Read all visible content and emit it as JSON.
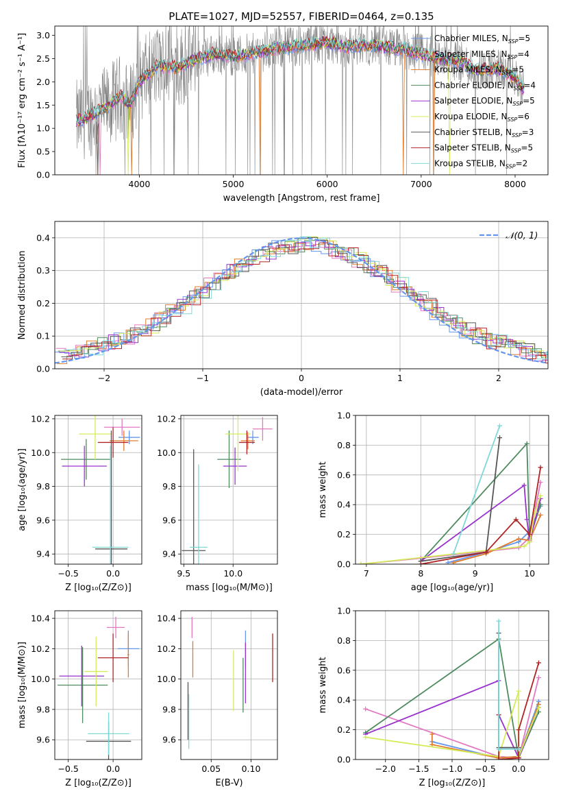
{
  "figure_title": "PLATE=1027, MJD=52557, FIBERID=0464, z=0.135",
  "colors": {
    "chabrier_miles": "#6495ed",
    "salpeter_miles": "#e377c2",
    "kroupa_miles": "#e07b2a",
    "chabrier_elodie": "#4e8a5e",
    "salpeter_elodie": "#9932cc",
    "kroupa_elodie": "#d4ec5a",
    "chabrier_stelib": "#555555",
    "salpeter_stelib": "#b22222",
    "kroupa_stelib": "#7fd8d8",
    "data_spectrum": "#808080",
    "normal_curve": "#6495ed",
    "grid": "#b0b0b0"
  },
  "chart_data": [
    {
      "id": "spectrum",
      "type": "line",
      "xlabel": "wavelength [Angstrom, rest frame]",
      "ylabel": "Flux [fλ10⁻¹⁷ erg cm⁻² s⁻¹ A⁻¹]",
      "xlim": [
        3100,
        8350
      ],
      "ylim": [
        0,
        3.2
      ],
      "xticks": [
        4000,
        5000,
        6000,
        7000,
        8000
      ],
      "yticks": [
        0.0,
        0.5,
        1.0,
        1.5,
        2.0,
        2.5,
        3.0
      ],
      "grid": false,
      "legend_position": "top-right",
      "continuum": [
        [
          3330,
          1.15
        ],
        [
          3500,
          1.3
        ],
        [
          3650,
          1.45
        ],
        [
          3800,
          1.7
        ],
        [
          3900,
          1.5
        ],
        [
          4000,
          2.0
        ],
        [
          4200,
          2.35
        ],
        [
          4400,
          2.3
        ],
        [
          4600,
          2.5
        ],
        [
          4800,
          2.6
        ],
        [
          5000,
          2.55
        ],
        [
          5200,
          2.6
        ],
        [
          5400,
          2.7
        ],
        [
          5600,
          2.75
        ],
        [
          5800,
          2.8
        ],
        [
          6000,
          2.85
        ],
        [
          6200,
          2.75
        ],
        [
          6400,
          2.8
        ],
        [
          6600,
          2.75
        ],
        [
          6800,
          2.7
        ],
        [
          7000,
          2.6
        ],
        [
          7200,
          2.5
        ],
        [
          7400,
          2.45
        ],
        [
          7600,
          2.25
        ],
        [
          7800,
          2.3
        ],
        [
          8000,
          2.1
        ],
        [
          8100,
          1.8
        ]
      ],
      "legend": [
        {
          "label": "Chabrier MILES, N",
          "sub": "SSP",
          "suffix": "=5",
          "color_key": "chabrier_miles"
        },
        {
          "label": "Salpeter MILES, N",
          "sub": "SSP",
          "suffix": "=4",
          "color_key": "salpeter_miles"
        },
        {
          "label": "Kroupa MILES, N",
          "sub": "SSP",
          "suffix": "=5",
          "color_key": "kroupa_miles"
        },
        {
          "label": "Chabrier ELODIE, N",
          "sub": "SSP",
          "suffix": "=4",
          "color_key": "chabrier_elodie"
        },
        {
          "label": "Salpeter ELODIE, N",
          "sub": "SSP",
          "suffix": "=5",
          "color_key": "salpeter_elodie"
        },
        {
          "label": "Kroupa ELODIE, N",
          "sub": "SSP",
          "suffix": "=6",
          "color_key": "kroupa_elodie"
        },
        {
          "label": "Chabrier STELIB, N",
          "sub": "SSP",
          "suffix": "=3",
          "color_key": "chabrier_stelib"
        },
        {
          "label": "Salpeter STELIB, N",
          "sub": "SSP",
          "suffix": "=5",
          "color_key": "salpeter_stelib"
        },
        {
          "label": "Kroupa STELIB, N",
          "sub": "SSP",
          "suffix": "=2",
          "color_key": "kroupa_stelib"
        }
      ]
    },
    {
      "id": "residuals",
      "type": "line",
      "xlabel": "(data-model)/error",
      "ylabel": "Normed distribution",
      "xlim": [
        -2.5,
        2.5
      ],
      "ylim": [
        0,
        0.45
      ],
      "xticks": [
        -2,
        -1,
        0,
        1,
        2
      ],
      "yticks": [
        0.0,
        0.1,
        0.2,
        0.3,
        0.4
      ],
      "grid": true,
      "legend_position": "top-right",
      "legend_label": "𝒩(0, 1)",
      "series_color_keys": [
        "chabrier_miles",
        "salpeter_miles",
        "kroupa_miles",
        "chabrier_elodie",
        "salpeter_elodie",
        "kroupa_elodie",
        "chabrier_stelib",
        "salpeter_stelib",
        "kroupa_stelib"
      ]
    },
    {
      "id": "z_age",
      "type": "scatter",
      "xlabel": "Z [log₁₀(Z/Z⊙)]",
      "ylabel": "age  [log₁₀(age/yr)]",
      "xlim": [
        -0.65,
        0.32
      ],
      "ylim": [
        9.34,
        10.22
      ],
      "xticks": [
        -0.5,
        0.0
      ],
      "yticks": [
        9.4,
        9.6,
        9.8,
        10.0,
        10.2
      ],
      "grid": true,
      "points": [
        {
          "x": 0.18,
          "y": 10.09,
          "xe": 0.12,
          "ye": 0.04,
          "color_key": "chabrier_miles"
        },
        {
          "x": 0.1,
          "y": 10.15,
          "xe": 0.2,
          "ye": 0.05,
          "color_key": "salpeter_miles"
        },
        {
          "x": 0.12,
          "y": 10.07,
          "xe": 0.16,
          "ye": 0.06,
          "color_key": "kroupa_miles"
        },
        {
          "x": -0.3,
          "y": 9.96,
          "xe": 0.28,
          "ye": 0.12,
          "color_key": "chabrier_elodie"
        },
        {
          "x": -0.32,
          "y": 9.92,
          "xe": 0.25,
          "ye": 0.12,
          "color_key": "salpeter_elodie"
        },
        {
          "x": -0.2,
          "y": 10.11,
          "xe": 0.18,
          "ye": 0.15,
          "color_key": "kroupa_elodie"
        },
        {
          "x": -0.02,
          "y": 9.43,
          "xe": 0.18,
          "ye": 0.7,
          "color_key": "chabrier_stelib"
        },
        {
          "x": 0.0,
          "y": 10.06,
          "xe": 0.17,
          "ye": 0.09,
          "color_key": "salpeter_stelib"
        },
        {
          "x": -0.03,
          "y": 9.44,
          "xe": 0.2,
          "ye": 0.6,
          "color_key": "kroupa_stelib"
        }
      ]
    },
    {
      "id": "mass_age",
      "type": "scatter",
      "xlabel": "mass [log₁₀(M/M⊙)]",
      "xlim": [
        9.47,
        10.45
      ],
      "ylim": [
        9.34,
        10.22
      ],
      "xticks": [
        9.5,
        10.0
      ],
      "yticks": [
        9.4,
        9.6,
        9.8,
        10.0,
        10.2
      ],
      "grid": true,
      "points": [
        {
          "x": 10.2,
          "y": 10.09,
          "xe": 0.06,
          "ye": 0.04,
          "color_key": "chabrier_miles"
        },
        {
          "x": 10.3,
          "y": 10.14,
          "xe": 0.1,
          "ye": 0.07,
          "color_key": "salpeter_miles"
        },
        {
          "x": 10.15,
          "y": 10.07,
          "xe": 0.07,
          "ye": 0.05,
          "color_key": "kroupa_miles"
        },
        {
          "x": 9.96,
          "y": 9.96,
          "xe": 0.12,
          "ye": 0.17,
          "color_key": "chabrier_elodie"
        },
        {
          "x": 10.02,
          "y": 9.92,
          "xe": 0.12,
          "ye": 0.11,
          "color_key": "salpeter_elodie"
        },
        {
          "x": 10.05,
          "y": 10.11,
          "xe": 0.13,
          "ye": 0.22,
          "color_key": "kroupa_elodie"
        },
        {
          "x": 9.6,
          "y": 9.42,
          "xe": 0.12,
          "ye": 0.6,
          "color_key": "chabrier_stelib"
        },
        {
          "x": 10.14,
          "y": 10.06,
          "xe": 0.08,
          "ye": 0.07,
          "color_key": "salpeter_stelib"
        },
        {
          "x": 9.65,
          "y": 9.44,
          "xe": 0.09,
          "ye": 0.49,
          "color_key": "kroupa_stelib"
        }
      ]
    },
    {
      "id": "age_weight",
      "type": "line",
      "xlabel": "age  [log₁₀(age/yr)]",
      "ylabel": "mass weight",
      "xlim": [
        6.8,
        10.35
      ],
      "ylim": [
        0,
        1.0
      ],
      "xticks": [
        7,
        8,
        9,
        10
      ],
      "yticks": [
        0.0,
        0.2,
        0.4,
        0.6,
        0.8,
        1.0
      ],
      "grid": true,
      "series": [
        {
          "color_key": "chabrier_miles",
          "points": [
            [
              8.5,
              0.01
            ],
            [
              9.2,
              0.08
            ],
            [
              9.8,
              0.15
            ],
            [
              10.0,
              0.22
            ],
            [
              10.2,
              0.39
            ]
          ]
        },
        {
          "color_key": "salpeter_miles",
          "points": [
            [
              6.9,
              0.0
            ],
            [
              8.0,
              0.04
            ],
            [
              9.8,
              0.11
            ],
            [
              10.0,
              0.18
            ],
            [
              10.2,
              0.55
            ]
          ]
        },
        {
          "color_key": "kroupa_miles",
          "points": [
            [
              8.6,
              0.01
            ],
            [
              9.2,
              0.07
            ],
            [
              9.8,
              0.17
            ],
            [
              10.0,
              0.16
            ],
            [
              10.2,
              0.33
            ]
          ]
        },
        {
          "color_key": "chabrier_elodie",
          "points": [
            [
              8.0,
              0.02
            ],
            [
              9.95,
              0.81
            ],
            [
              10.0,
              0.17
            ],
            [
              10.2,
              0.4
            ]
          ]
        },
        {
          "color_key": "salpeter_elodie",
          "points": [
            [
              8.0,
              0.02
            ],
            [
              9.9,
              0.53
            ],
            [
              9.95,
              0.3
            ],
            [
              10.0,
              0.15
            ],
            [
              10.2,
              0.44
            ]
          ]
        },
        {
          "color_key": "kroupa_elodie",
          "points": [
            [
              6.9,
              0.0
            ],
            [
              9.9,
              0.12
            ],
            [
              10.0,
              0.15
            ],
            [
              10.1,
              0.35
            ],
            [
              10.2,
              0.46
            ]
          ]
        },
        {
          "color_key": "chabrier_stelib",
          "points": [
            [
              8.0,
              0.02
            ],
            [
              9.2,
              0.08
            ],
            [
              9.45,
              0.85
            ]
          ]
        },
        {
          "color_key": "salpeter_stelib",
          "points": [
            [
              8.0,
              0.0
            ],
            [
              9.2,
              0.08
            ],
            [
              9.75,
              0.3
            ],
            [
              10.0,
              0.2
            ],
            [
              10.2,
              0.65
            ]
          ]
        },
        {
          "color_key": "kroupa_stelib",
          "points": [
            [
              8.6,
              0.07
            ],
            [
              9.45,
              0.93
            ]
          ]
        }
      ]
    },
    {
      "id": "z_mass",
      "type": "scatter",
      "xlabel": "Z [log₁₀(Z/Z⊙)]",
      "ylabel": "mass [log₁₀(M/M⊙)]",
      "xlim": [
        -0.65,
        0.32
      ],
      "ylim": [
        9.47,
        10.45
      ],
      "xticks": [
        -0.5,
        0.0
      ],
      "yticks": [
        9.6,
        9.8,
        10.0,
        10.2,
        10.4
      ],
      "grid": true,
      "points": [
        {
          "x": 0.17,
          "y": 10.2,
          "xe": 0.12,
          "ye": 0.12,
          "color_key": "chabrier_miles"
        },
        {
          "x": 0.03,
          "y": 10.34,
          "xe": 0.1,
          "ye": 0.07,
          "color_key": "salpeter_miles"
        },
        {
          "x": 0.17,
          "y": 10.16,
          "xe": 0.01,
          "ye": 0.15,
          "color_key": "kroupa_miles"
        },
        {
          "x": -0.34,
          "y": 9.96,
          "xe": 0.28,
          "ye": 0.25,
          "color_key": "chabrier_elodie"
        },
        {
          "x": -0.35,
          "y": 10.02,
          "xe": 0.25,
          "ye": 0.2,
          "color_key": "salpeter_elodie"
        },
        {
          "x": -0.19,
          "y": 10.05,
          "xe": 0.13,
          "ye": 0.23,
          "color_key": "kroupa_elodie"
        },
        {
          "x": -0.05,
          "y": 9.59,
          "xe": 0.25,
          "ye": 0.13,
          "color_key": "chabrier_stelib"
        },
        {
          "x": 0.0,
          "y": 10.14,
          "xe": 0.17,
          "ye": 0.16,
          "color_key": "salpeter_stelib"
        },
        {
          "x": -0.05,
          "y": 9.64,
          "xe": 0.23,
          "ye": 0.14,
          "color_key": "kroupa_stelib"
        }
      ]
    },
    {
      "id": "ebv_mass",
      "type": "scatter",
      "xlabel": "E(B-V)",
      "xlim": [
        0.012,
        0.133
      ],
      "ylim": [
        9.47,
        10.45
      ],
      "xticks": [
        0.05,
        0.1
      ],
      "yticks": [
        9.6,
        9.8,
        10.0,
        10.2,
        10.4
      ],
      "grid": true,
      "points": [
        {
          "x": 0.093,
          "y": 10.2,
          "ye": 0.12,
          "color_key": "chabrier_miles"
        },
        {
          "x": 0.026,
          "y": 10.34,
          "ye": 0.07,
          "color_key": "salpeter_miles"
        },
        {
          "x": 0.027,
          "y": 10.13,
          "ye": 0.12,
          "color_key": "kroupa_miles"
        },
        {
          "x": 0.09,
          "y": 9.96,
          "ye": 0.18,
          "color_key": "chabrier_elodie"
        },
        {
          "x": 0.093,
          "y": 10.04,
          "ye": 0.2,
          "color_key": "salpeter_elodie"
        },
        {
          "x": 0.078,
          "y": 9.99,
          "ye": 0.2,
          "color_key": "kroupa_elodie"
        },
        {
          "x": 0.021,
          "y": 9.79,
          "ye": 0.19,
          "color_key": "chabrier_stelib"
        },
        {
          "x": 0.127,
          "y": 10.14,
          "ye": 0.16,
          "color_key": "salpeter_stelib"
        },
        {
          "x": 0.022,
          "y": 9.72,
          "ye": 0.18,
          "color_key": "kroupa_stelib"
        }
      ]
    },
    {
      "id": "z_weight",
      "type": "line",
      "xlabel": "Z [log₁₀(Z/Z⊙)]",
      "ylabel": "mass weight",
      "xlim": [
        -2.45,
        0.45
      ],
      "ylim": [
        0,
        1.0
      ],
      "xticks": [
        -2.0,
        -1.5,
        -1.0,
        -0.5,
        0.0
      ],
      "yticks": [
        0.0,
        0.2,
        0.4,
        0.6,
        0.8,
        1.0
      ],
      "grid": true,
      "series": [
        {
          "color_key": "chabrier_miles",
          "points": [
            [
              -1.3,
              0.12
            ],
            [
              -0.3,
              0.01
            ],
            [
              0.0,
              0.02
            ],
            [
              0.3,
              0.39
            ]
          ]
        },
        {
          "color_key": "salpeter_miles",
          "points": [
            [
              -2.3,
              0.34
            ],
            [
              -0.3,
              0.02
            ],
            [
              0.0,
              0.01
            ],
            [
              0.3,
              0.55
            ]
          ]
        },
        {
          "color_key": "kroupa_miles",
          "points": [
            [
              -1.3,
              0.17
            ],
            [
              -1.3,
              0.1
            ],
            [
              -0.3,
              0.01
            ],
            [
              0.0,
              0.02
            ],
            [
              0.3,
              0.37
            ]
          ]
        },
        {
          "color_key": "chabrier_elodie",
          "points": [
            [
              -2.3,
              0.18
            ],
            [
              -0.3,
              0.81
            ],
            [
              0.0,
              0.01
            ],
            [
              0.3,
              0.32
            ]
          ]
        },
        {
          "color_key": "salpeter_elodie",
          "points": [
            [
              -2.3,
              0.17
            ],
            [
              -0.3,
              0.53
            ],
            [
              -0.3,
              0.3
            ],
            [
              0.0,
              0.01
            ],
            [
              0.3,
              0.35
            ]
          ]
        },
        {
          "color_key": "kroupa_elodie",
          "points": [
            [
              -2.3,
              0.15
            ],
            [
              -0.3,
              0.02
            ],
            [
              0.0,
              0.46
            ],
            [
              0.0,
              0.02
            ],
            [
              0.3,
              0.35
            ]
          ]
        },
        {
          "color_key": "chabrier_stelib",
          "points": [
            [
              -0.3,
              0.85
            ],
            [
              -0.3,
              0.08
            ],
            [
              0.0,
              0.08
            ]
          ]
        },
        {
          "color_key": "salpeter_stelib",
          "points": [
            [
              -0.3,
              0.3
            ],
            [
              -0.3,
              0.0
            ],
            [
              0.0,
              0.01
            ],
            [
              0.0,
              0.2
            ],
            [
              0.3,
              0.65
            ]
          ]
        },
        {
          "color_key": "kroupa_stelib",
          "points": [
            [
              -0.3,
              0.93
            ],
            [
              -0.3,
              0.07
            ],
            [
              0.0,
              0.07
            ]
          ]
        }
      ]
    }
  ]
}
